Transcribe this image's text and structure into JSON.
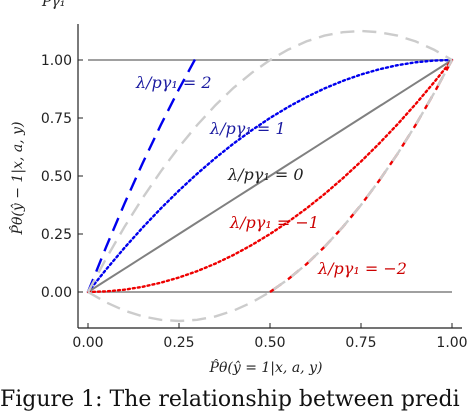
{
  "figure": {
    "top_label": "Pγ₁",
    "caption": "Figure 1: The relationship between predi"
  },
  "chart_data": {
    "type": "line",
    "xlabel": "P̂θ(ŷ = 1|x, a, y)",
    "ylabel": "P̂θ(ŷ − 1|x, a, y)",
    "xlim": [
      0,
      1
    ],
    "ylim": [
      0,
      1
    ],
    "x_ticks": [
      "0.00",
      "0.25",
      "0.50",
      "0.75",
      "1.00"
    ],
    "y_ticks": [
      "0.00",
      "0.25",
      "0.50",
      "0.75",
      "1.00"
    ],
    "grid": false,
    "x": [
      0,
      0.05,
      0.1,
      0.15,
      0.2,
      0.25,
      0.3,
      0.35,
      0.4,
      0.45,
      0.5,
      0.55,
      0.6,
      0.65,
      0.7,
      0.75,
      0.8,
      0.85,
      0.9,
      0.95,
      1.0
    ],
    "series": [
      {
        "name": "λ/pγ₁ = 2",
        "color": "#0000ee",
        "style": "dashed",
        "values": [
          0,
          0.195,
          0.38,
          0.555,
          0.72,
          0.875,
          1.02,
          null,
          null,
          null,
          null,
          null,
          null,
          null,
          null,
          null,
          null,
          null,
          null,
          null,
          null
        ]
      },
      {
        "name": "λ/pγ₁ = 1",
        "color": "#0000ee",
        "style": "dotted",
        "values": [
          0,
          0.0975,
          0.19,
          0.2775,
          0.36,
          0.4375,
          0.51,
          0.5775,
          0.64,
          0.6975,
          0.75,
          0.7975,
          0.84,
          0.8775,
          0.91,
          0.9375,
          0.96,
          0.9775,
          0.99,
          0.9975,
          1.0
        ]
      },
      {
        "name": "λ/pγ₁ = 0",
        "color": "#808080",
        "style": "solid",
        "values": [
          0,
          0.05,
          0.1,
          0.15,
          0.2,
          0.25,
          0.3,
          0.35,
          0.4,
          0.45,
          0.5,
          0.55,
          0.6,
          0.65,
          0.7,
          0.75,
          0.8,
          0.85,
          0.9,
          0.95,
          1.0
        ]
      },
      {
        "name": "λ/pγ₁ = −1",
        "color": "#ee0000",
        "style": "dotted",
        "values": [
          0,
          0.0025,
          0.01,
          0.0225,
          0.04,
          0.0625,
          0.09,
          0.1225,
          0.16,
          0.2025,
          0.25,
          0.3025,
          0.36,
          0.4225,
          0.49,
          0.5625,
          0.64,
          0.7225,
          0.81,
          0.9025,
          1.0
        ]
      },
      {
        "name": "λ/pγ₁ = −2",
        "color": "#ee0000",
        "style": "dashed",
        "values": [
          null,
          null,
          null,
          null,
          null,
          null,
          null,
          null,
          null,
          null,
          0,
          0.055,
          0.12,
          0.195,
          0.28,
          0.375,
          0.48,
          0.595,
          0.72,
          0.855,
          1.0
        ]
      },
      {
        "name": "",
        "color": "#cccccc",
        "style": "dashed",
        "values": [
          0,
          -0.045,
          -0.08,
          -0.105,
          -0.12,
          -0.125,
          -0.12,
          -0.105,
          -0.08,
          -0.045,
          0,
          0.055,
          0.12,
          0.195,
          0.28,
          0.375,
          0.48,
          0.595,
          0.72,
          0.855,
          1.0
        ]
      },
      {
        "name": "",
        "color": "#cccccc",
        "style": "dashed",
        "values": [
          0,
          0.145,
          0.28,
          0.405,
          0.52,
          0.625,
          0.72,
          0.805,
          0.88,
          0.945,
          1.0,
          1.045,
          1.08,
          1.105,
          1.12,
          1.125,
          1.12,
          1.105,
          1.08,
          1.045,
          1.0
        ]
      }
    ],
    "hlines": [
      0,
      1
    ],
    "annotations": {
      "s2": "λ/pγ₁ = 2",
      "s1": "λ/pγ₁ = 1",
      "s0": "λ/pγ₁ = 0",
      "sm1": "λ/pγ₁ = −1",
      "sm2": "λ/pγ₁ = −2"
    }
  }
}
